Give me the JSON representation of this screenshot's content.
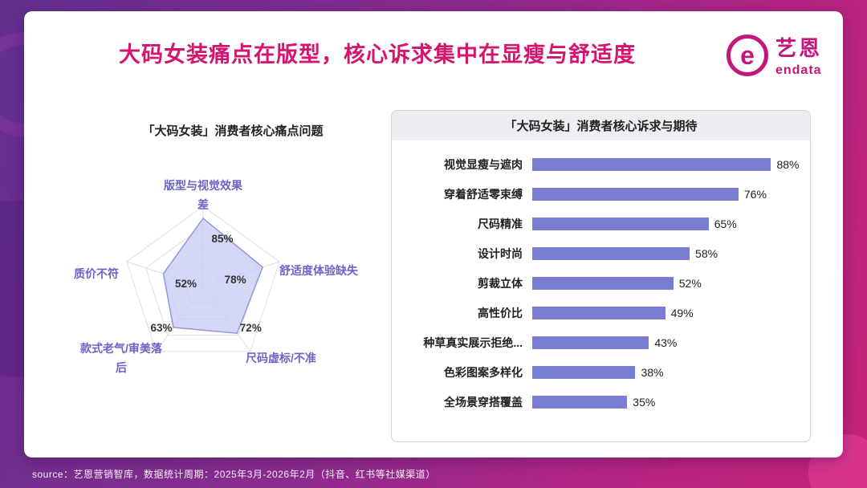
{
  "page": {
    "title": "大码女装痛点在版型，核心诉求集中在显瘦与舒适度",
    "source_note": "source：艺恩营销智库，数据统计周期：2025年3月-2026年2月（抖音、红书等社媒渠道）"
  },
  "logo": {
    "brand_cn": "艺恩",
    "brand_en": "endata",
    "mark_letter": "e"
  },
  "colors": {
    "title_pink": "#d4156f",
    "brand_magenta": "#c4177c",
    "bar_purple": "#797ed1",
    "axis_label_purple": "#6c63c5",
    "radar_fill": "#c9cdf4",
    "radar_stroke": "#9196dd"
  },
  "chart_data": [
    {
      "type": "radar",
      "title": "「大码女装」消费者核心痛点问题",
      "categories": [
        "版型与视觉效果差",
        "舒适度体验缺失",
        "尺码虚标/不准",
        "款式老气/审美落后",
        "质价不符"
      ],
      "values": [
        85,
        78,
        72,
        63,
        52
      ],
      "unit": "%",
      "max": 100,
      "grid": true,
      "rings": [
        0.25,
        0.5,
        0.75,
        1
      ]
    },
    {
      "type": "bar",
      "orientation": "horizontal",
      "title": "「大码女装」消费者核心诉求与期待",
      "categories": [
        "视觉显瘦与遮肉",
        "穿着舒适零束缚",
        "尺码精准",
        "设计时尚",
        "剪裁立体",
        "高性价比",
        "种草真实展示拒绝...",
        "色彩图案多样化",
        "全场景穿搭覆盖"
      ],
      "values": [
        88,
        76,
        65,
        58,
        52,
        49,
        43,
        38,
        35
      ],
      "unit": "%",
      "xlim": [
        0,
        100
      ],
      "value_labels": "outside-end"
    }
  ]
}
